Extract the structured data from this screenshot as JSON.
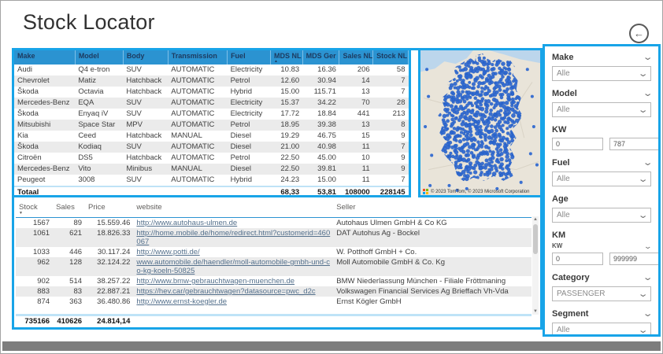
{
  "page": {
    "title": "Stock Locator"
  },
  "icons": {
    "back": "←",
    "chevron_down": "⌄",
    "sort_asc": "▲",
    "sort_desc": "▼",
    "scroll_up": "▲",
    "scroll_down": "▼"
  },
  "colors": {
    "accent_border": "#18a4e8",
    "table_header_bg": "#2b93d1",
    "map_marker": "#2b66cf"
  },
  "stock_table": {
    "columns": [
      "Make",
      "Model",
      "Body",
      "Transmission",
      "Fuel",
      "MDS NL",
      "MDS Ger",
      "Sales NL",
      "Stock NL"
    ],
    "sort": {
      "column": "MDS NL",
      "direction": "asc"
    },
    "rows": [
      [
        "Audi",
        "Q4 e-tron",
        "SUV",
        "AUTOMATIC",
        "Electricity",
        "10.83",
        "16.36",
        "206",
        "58"
      ],
      [
        "Chevrolet",
        "Matiz",
        "Hatchback",
        "AUTOMATIC",
        "Petrol",
        "12.60",
        "30.94",
        "14",
        "7"
      ],
      [
        "Škoda",
        "Octavia",
        "Hatchback",
        "AUTOMATIC",
        "Hybrid",
        "15.00",
        "115.71",
        "13",
        "7"
      ],
      [
        "Mercedes-Benz",
        "EQA",
        "SUV",
        "AUTOMATIC",
        "Electricity",
        "15.37",
        "34.22",
        "70",
        "28"
      ],
      [
        "Škoda",
        "Enyaq iV",
        "SUV",
        "AUTOMATIC",
        "Electricity",
        "17.72",
        "18.84",
        "441",
        "213"
      ],
      [
        "Mitsubishi",
        "Space Star",
        "MPV",
        "AUTOMATIC",
        "Petrol",
        "18.95",
        "39.38",
        "13",
        "8"
      ],
      [
        "Kia",
        "Ceed",
        "Hatchback",
        "MANUAL",
        "Diesel",
        "19.29",
        "46.75",
        "15",
        "9"
      ],
      [
        "Škoda",
        "Kodiaq",
        "SUV",
        "AUTOMATIC",
        "Diesel",
        "21.00",
        "40.98",
        "11",
        "7"
      ],
      [
        "Citroën",
        "DS5",
        "Hatchback",
        "AUTOMATIC",
        "Petrol",
        "22.50",
        "45.00",
        "10",
        "9"
      ],
      [
        "Mercedes-Benz",
        "Vito",
        "Minibus",
        "MANUAL",
        "Diesel",
        "22.50",
        "39.81",
        "11",
        "9"
      ],
      [
        "Peugeot",
        "3008",
        "SUV",
        "AUTOMATIC",
        "Hybrid",
        "24.23",
        "15.00",
        "11",
        "7"
      ]
    ],
    "total": [
      "Totaal",
      "",
      "",
      "",
      "",
      "68,33",
      "53,81",
      "108000",
      "228145"
    ]
  },
  "seller_table": {
    "columns": [
      "Stock",
      "Sales",
      "Price",
      "website",
      "Seller"
    ],
    "sort": {
      "column": "Stock",
      "direction": "desc"
    },
    "link_column": 3,
    "rows": [
      [
        "1567",
        "89",
        "15.559.46",
        "http://www.autohaus-ulmen.de",
        "Autohaus Ulmen GmbH & Co KG"
      ],
      [
        "1061",
        "621",
        "18.826.33",
        "http://home.mobile.de/home/redirect.html?customerid=460067",
        "DAT Autohus Ag - Bockel"
      ],
      [
        "1033",
        "446",
        "30.117.24",
        "http://www.potti.de/",
        "W. Potthoff GmbH + Co."
      ],
      [
        "962",
        "128",
        "32.124.22",
        "www.automobile.de/haendler/moll-automobile-gmbh-und-co-kg-koeln-50825",
        "Moll Automobile GmbH & Co. Kg"
      ],
      [
        "902",
        "514",
        "38.257.22",
        "http://www.bmw-gebrauchtwagen-muenchen.de",
        "BMW Niederlassung München - Filiale Fröttmaning"
      ],
      [
        "883",
        "83",
        "22.887.21",
        "https://hev.car/gebrauchtwagen?datasource=pwc_d2c",
        "Volkswagen Financial Services Ag Brieffach Vh-Vda"
      ],
      [
        "874",
        "363",
        "36.480.86",
        "http://www.ernst-koegler.de",
        "Ernst Kögler GmbH"
      ]
    ],
    "total": [
      "735166",
      "410626",
      "24.814,14",
      "",
      ""
    ]
  },
  "map": {
    "region": "Germany",
    "attribution": "© 2023 TomTom, © 2023 Microsoft Corporation"
  },
  "filters": [
    {
      "label": "Make",
      "type": "dropdown",
      "value": "Alle",
      "header_chevron": true
    },
    {
      "label": "Model",
      "type": "dropdown",
      "value": "Alle",
      "header_chevron": true
    },
    {
      "label": "KW",
      "type": "range",
      "min": "0",
      "max": "787",
      "header_chevron": false
    },
    {
      "label": "Fuel",
      "type": "dropdown",
      "value": "Alle",
      "header_chevron": true
    },
    {
      "label": "Age",
      "type": "dropdown",
      "value": "Alle",
      "header_chevron": false
    },
    {
      "label": "KM",
      "type": "range",
      "sub_label": "KW",
      "min": "0",
      "max": "999999",
      "header_chevron": false
    },
    {
      "label": "Category",
      "type": "dropdown",
      "value": "PASSENGER",
      "header_chevron": true
    },
    {
      "label": "Segment",
      "type": "dropdown",
      "value": "Alle",
      "header_chevron": true
    }
  ]
}
